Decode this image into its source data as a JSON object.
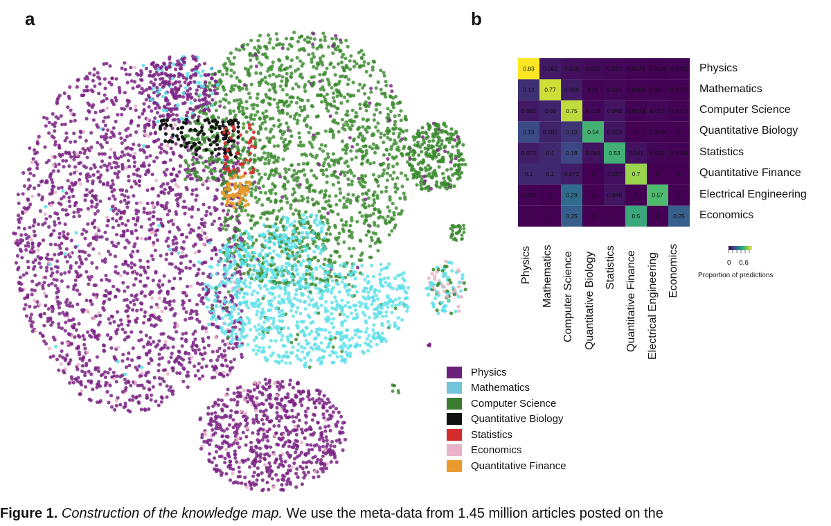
{
  "panel_a": {
    "letter": "a",
    "legend": [
      {
        "label": "Physics",
        "color": "#6b2179"
      },
      {
        "label": "Mathematics",
        "color": "#73c3d9"
      },
      {
        "label": "Computer Science",
        "color": "#3b7c32"
      },
      {
        "label": "Quantitative Biology",
        "color": "#111111"
      },
      {
        "label": "Statistics",
        "color": "#d42c2c"
      },
      {
        "label": "Economics",
        "color": "#e8b3c8"
      },
      {
        "label": "Quantitative Finance",
        "color": "#e99a2e"
      }
    ],
    "chart_data": {
      "type": "scatter",
      "series_colors": {
        "Physics": "#7b2585",
        "Mathematics": "#5be0e8",
        "Computer Science": "#3a8a2e",
        "Quantitative Biology": "#111111",
        "Statistics": "#d42c2c",
        "Economics": "#e8b3c8",
        "Quantitative Finance": "#e99a2e"
      }
    }
  },
  "panel_b": {
    "letter": "b",
    "chart_data": {
      "type": "heatmap",
      "rows": [
        "Physics",
        "Mathematics",
        "Computer Science",
        "Quantitative Biology",
        "Statistics",
        "Quantitative Finance",
        "Electrical Engineering",
        "Economics"
      ],
      "cols": [
        "Physics",
        "Mathematics",
        "Computer Science",
        "Quantitative Biology",
        "Statistics",
        "Quantitative Finance",
        "Electrical Engineering",
        "Economics"
      ],
      "values": [
        [
          0.83,
          0.062,
          0.039,
          0.025,
          0.017,
          0.0073,
          0.0026,
          0.0061
        ],
        [
          0.12,
          0.77,
          0.069,
          0.01,
          0.016,
          0.0068,
          0.0013,
          0.0027
        ],
        [
          0.062,
          0.09,
          0.75,
          0.018,
          0.048,
          0.0073,
          0.017,
          0.0073
        ],
        [
          0.19,
          0.085,
          0.13,
          0.54,
          0.053,
          0,
          0.0048,
          0
        ],
        [
          0.072,
          0.1,
          0.18,
          0.046,
          0.53,
          0.041,
          0.012,
          0.0081
        ],
        [
          0.1,
          0.1,
          0.073,
          0,
          0.037,
          0.7,
          0,
          0
        ],
        [
          0.005,
          0,
          0.29,
          0,
          0.048,
          0,
          0.57,
          0
        ],
        [
          0,
          0,
          0.25,
          0,
          0,
          0.5,
          0,
          0.25
        ]
      ],
      "cell_labels": [
        [
          "0.83",
          "0.062",
          "0.039",
          "0.025",
          "0.017",
          "0.0073",
          "0.0026",
          "0.0061"
        ],
        [
          "0.12",
          "0.77",
          "0.069",
          "0.01",
          "0.016",
          "0.0068",
          "0.0013",
          "0.0027"
        ],
        [
          "0.062",
          "0.09",
          "0.75",
          "0.018",
          "0.048",
          "0.0073",
          "0.017",
          "0.0073"
        ],
        [
          "0.19",
          "0.085",
          "0.13",
          "0.54",
          "0.053",
          "0",
          "0.0048",
          "0"
        ],
        [
          "0.072",
          "0.1",
          "0.18",
          "0.046",
          "0.53",
          "0.041",
          "0.012",
          "0.0081"
        ],
        [
          "0.1",
          "0.1",
          "0.073",
          "0",
          "0.037",
          "0.7",
          "0",
          "0"
        ],
        [
          "0.005",
          "0",
          "0.29",
          "0",
          "0.048",
          "0",
          "0.57",
          "0"
        ],
        [
          "0",
          "0",
          "0.25",
          "0",
          "0",
          "0.5",
          "0",
          "0.25"
        ]
      ],
      "colormap": "viridis",
      "colorbar": {
        "ticks": [
          "0",
          "0.6"
        ],
        "title": "Proportion of predictions"
      }
    }
  },
  "caption": {
    "lead": "Figure 1.",
    "italic": "Construction of the knowledge map.",
    "rest": " We use the meta-data from 1.45 million articles posted on the"
  }
}
